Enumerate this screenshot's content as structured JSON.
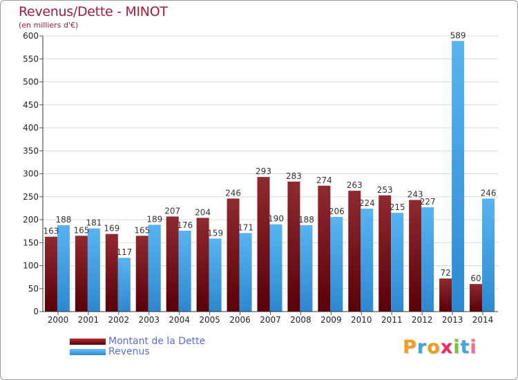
{
  "title": "Revenus/Dette - MINOT",
  "subtitle": "(en milliers d'€)",
  "brand": {
    "letters": [
      "P",
      "r",
      "o",
      "x",
      "i",
      "t",
      "i"
    ],
    "colors": [
      "#f0a020",
      "#3aa8d8",
      "#e8a020",
      "#e83060",
      "#80c040",
      "#40a8e0",
      "#f07090"
    ]
  },
  "legend": {
    "debt_label": "Montant de la Dette",
    "revenue_label": "Revenus"
  },
  "chart_data": {
    "type": "bar",
    "title": "Revenus/Dette - MINOT",
    "subtitle": "(en milliers d'€)",
    "xlabel": "",
    "ylabel": "",
    "ylim": [
      0,
      600
    ],
    "yticks": [
      0,
      50,
      100,
      150,
      200,
      250,
      300,
      350,
      400,
      450,
      500,
      550,
      600
    ],
    "grid": true,
    "legend_position": "bottom-left",
    "categories": [
      "2000",
      "2001",
      "2002",
      "2003",
      "2004",
      "2005",
      "2006",
      "2007",
      "2008",
      "2009",
      "2010",
      "2011",
      "2012",
      "2013",
      "2014"
    ],
    "series": [
      {
        "name": "Montant de la Dette",
        "color": "#8b1a24",
        "values": [
          163,
          165,
          169,
          165,
          207,
          204,
          246,
          293,
          283,
          274,
          263,
          253,
          243,
          72,
          60
        ]
      },
      {
        "name": "Revenus",
        "color": "#3fa3e6",
        "values": [
          188,
          181,
          117,
          189,
          176,
          159,
          171,
          190,
          188,
          206,
          224,
          215,
          227,
          589,
          246
        ]
      }
    ]
  }
}
